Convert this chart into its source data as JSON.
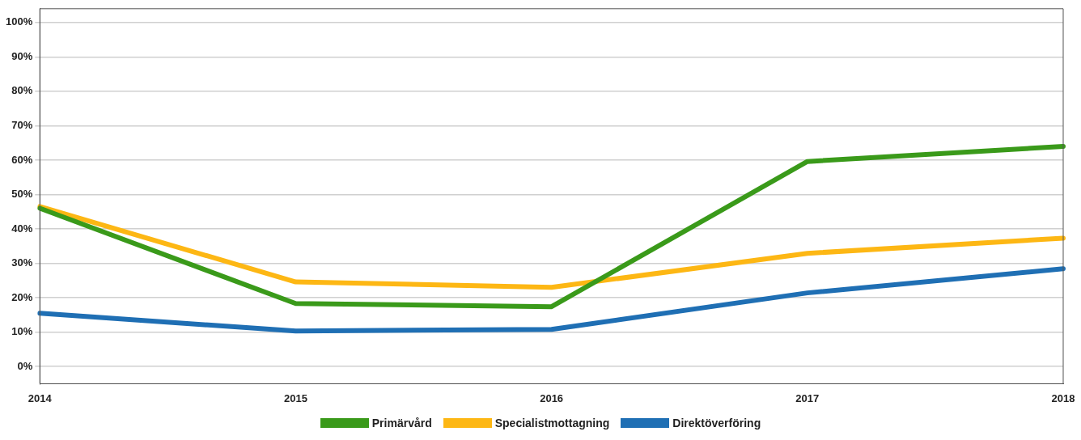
{
  "chart_data": {
    "type": "line",
    "categories": [
      "2014",
      "2015",
      "2016",
      "2017",
      "2018"
    ],
    "series": [
      {
        "name": "Primärvård",
        "color": "#3a9a1a",
        "values": [
          46,
          18.3,
          17.4,
          59.6,
          64
        ]
      },
      {
        "name": "Specialistmottagning",
        "color": "#fdb714",
        "values": [
          46.5,
          24.6,
          23,
          32.9,
          37.3
        ]
      },
      {
        "name": "Direktöverföring",
        "color": "#1f6fb4",
        "values": [
          15.5,
          10.3,
          10.8,
          21.4,
          28.4
        ]
      }
    ],
    "ylim": [
      -5,
      104
    ],
    "yticks": [
      {
        "value": 0,
        "label": "0%"
      },
      {
        "value": 10,
        "label": "10%"
      },
      {
        "value": 20,
        "label": "20%"
      },
      {
        "value": 30,
        "label": "30%"
      },
      {
        "value": 40,
        "label": "40%"
      },
      {
        "value": 50,
        "label": "50%"
      },
      {
        "value": 60,
        "label": "60%"
      },
      {
        "value": 70,
        "label": "70%"
      },
      {
        "value": 80,
        "label": "80%"
      },
      {
        "value": 90,
        "label": "90%"
      },
      {
        "value": 100,
        "label": "100%"
      }
    ],
    "grid": "y",
    "legend": "bottom",
    "marker": "none",
    "line_style": "solid"
  }
}
